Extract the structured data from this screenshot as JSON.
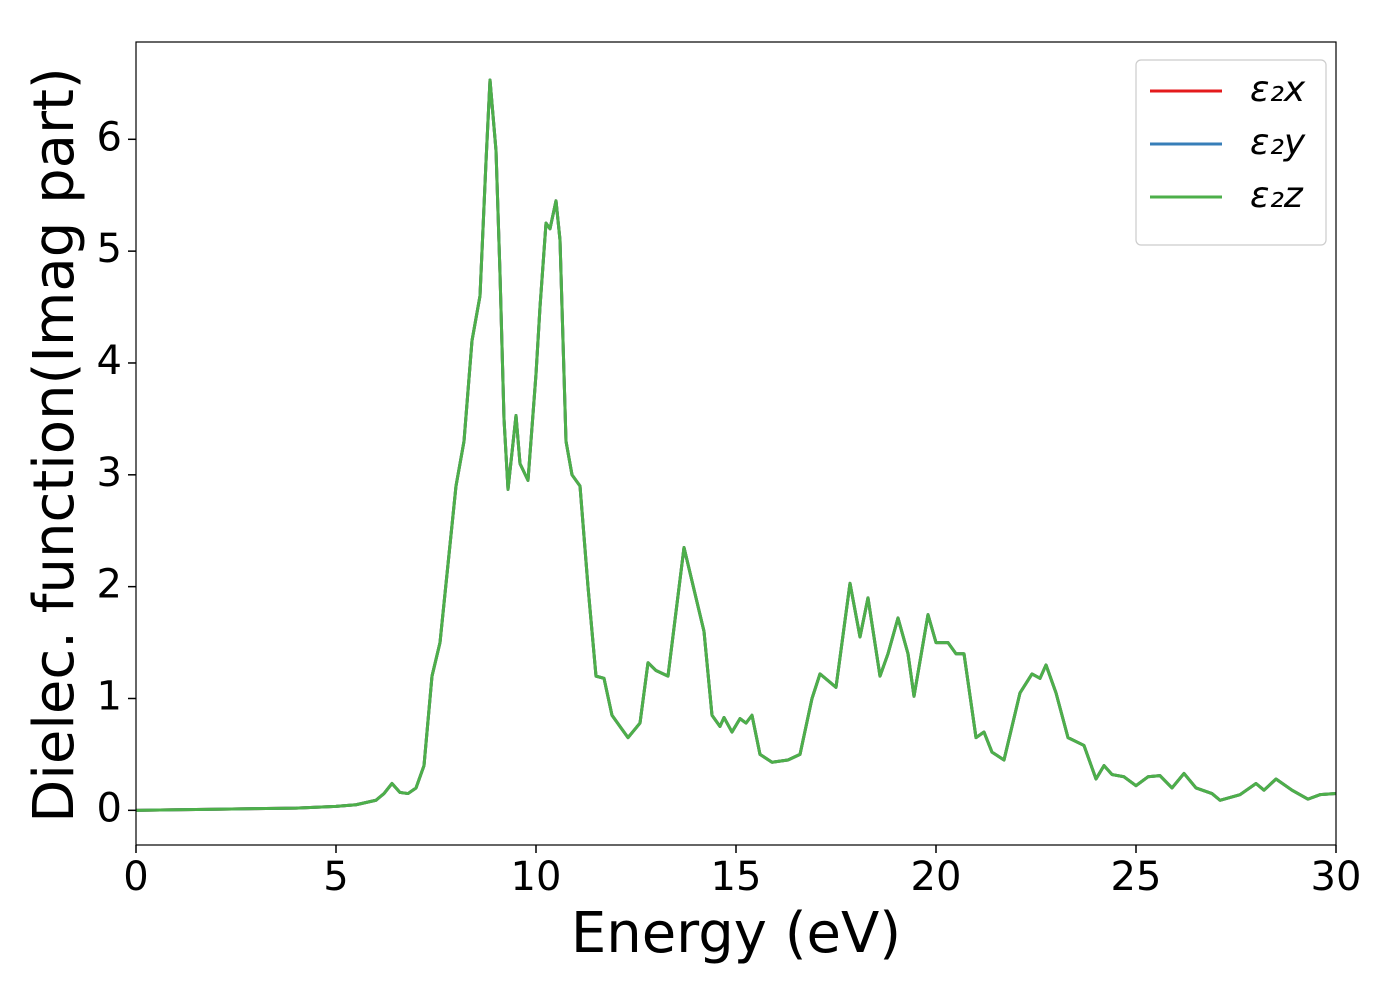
{
  "chart_data": {
    "type": "line",
    "xlabel": "Energy (eV)",
    "ylabel": "Dielec. function(Imag part)",
    "x": [
      0,
      1,
      2,
      3,
      4,
      5,
      5.5,
      6.0,
      6.2,
      6.4,
      6.6,
      6.8,
      7.0,
      7.2,
      7.4,
      7.6,
      7.8,
      8.0,
      8.2,
      8.4,
      8.6,
      8.75,
      8.85,
      9.0,
      9.1,
      9.2,
      9.3,
      9.4,
      9.5,
      9.6,
      9.8,
      10.0,
      10.1,
      10.25,
      10.35,
      10.5,
      10.6,
      10.75,
      10.9,
      11.1,
      11.3,
      11.5,
      11.7,
      11.9,
      12.1,
      12.3,
      12.6,
      12.8,
      13.0,
      13.3,
      13.7,
      14.0,
      14.2,
      14.4,
      14.6,
      14.7,
      14.9,
      15.1,
      15.25,
      15.4,
      15.6,
      15.9,
      16.3,
      16.6,
      16.9,
      17.1,
      17.5,
      17.85,
      18.1,
      18.3,
      18.6,
      18.8,
      19.05,
      19.3,
      19.45,
      19.8,
      20.0,
      20.3,
      20.5,
      20.7,
      21.0,
      21.2,
      21.4,
      21.7,
      22.1,
      22.4,
      22.6,
      22.75,
      23.0,
      23.3,
      23.7,
      24.0,
      24.2,
      24.4,
      24.7,
      25.0,
      25.3,
      25.6,
      25.9,
      26.2,
      26.5,
      26.9,
      27.1,
      27.6,
      28.0,
      28.2,
      28.5,
      28.9,
      29.3,
      29.6,
      30
    ],
    "series": [
      {
        "name": "ε₂x",
        "color": "#e41a1c",
        "values": [
          0.0,
          0.005,
          0.01,
          0.015,
          0.02,
          0.035,
          0.05,
          0.09,
          0.15,
          0.24,
          0.16,
          0.15,
          0.2,
          0.4,
          1.2,
          1.5,
          2.2,
          2.9,
          3.3,
          4.2,
          4.6,
          5.8,
          6.53,
          5.9,
          4.8,
          3.5,
          2.87,
          3.2,
          3.53,
          3.1,
          2.95,
          3.9,
          4.5,
          5.25,
          5.2,
          5.45,
          5.1,
          3.3,
          3.0,
          2.9,
          2.0,
          1.2,
          1.18,
          0.85,
          0.75,
          0.65,
          0.78,
          1.32,
          1.25,
          1.2,
          2.35,
          1.9,
          1.6,
          0.85,
          0.75,
          0.83,
          0.7,
          0.82,
          0.78,
          0.85,
          0.5,
          0.43,
          0.45,
          0.5,
          1.0,
          1.22,
          1.1,
          2.03,
          1.55,
          1.9,
          1.2,
          1.4,
          1.72,
          1.4,
          1.02,
          1.75,
          1.5,
          1.5,
          1.4,
          1.4,
          0.65,
          0.7,
          0.52,
          0.45,
          1.05,
          1.22,
          1.18,
          1.3,
          1.05,
          0.65,
          0.58,
          0.28,
          0.4,
          0.32,
          0.3,
          0.22,
          0.3,
          0.31,
          0.2,
          0.33,
          0.2,
          0.15,
          0.09,
          0.14,
          0.24,
          0.18,
          0.28,
          0.18,
          0.1,
          0.14,
          0.15
        ]
      },
      {
        "name": "ε₂y",
        "color": "#377eb8",
        "values": [
          0.0,
          0.005,
          0.01,
          0.015,
          0.02,
          0.035,
          0.05,
          0.09,
          0.15,
          0.24,
          0.16,
          0.15,
          0.2,
          0.4,
          1.2,
          1.5,
          2.2,
          2.9,
          3.3,
          4.2,
          4.6,
          5.8,
          6.53,
          5.9,
          4.8,
          3.5,
          2.87,
          3.2,
          3.53,
          3.1,
          2.95,
          3.9,
          4.5,
          5.25,
          5.2,
          5.45,
          5.1,
          3.3,
          3.0,
          2.9,
          2.0,
          1.2,
          1.18,
          0.85,
          0.75,
          0.65,
          0.78,
          1.32,
          1.25,
          1.2,
          2.35,
          1.9,
          1.6,
          0.85,
          0.75,
          0.83,
          0.7,
          0.82,
          0.78,
          0.85,
          0.5,
          0.43,
          0.45,
          0.5,
          1.0,
          1.22,
          1.1,
          2.03,
          1.55,
          1.9,
          1.2,
          1.4,
          1.72,
          1.4,
          1.02,
          1.75,
          1.5,
          1.5,
          1.4,
          1.4,
          0.65,
          0.7,
          0.52,
          0.45,
          1.05,
          1.22,
          1.18,
          1.3,
          1.05,
          0.65,
          0.58,
          0.28,
          0.4,
          0.32,
          0.3,
          0.22,
          0.3,
          0.31,
          0.2,
          0.33,
          0.2,
          0.15,
          0.09,
          0.14,
          0.24,
          0.18,
          0.28,
          0.18,
          0.1,
          0.14,
          0.15
        ]
      },
      {
        "name": "ε₂z",
        "color": "#4daf4a",
        "values": [
          0.0,
          0.005,
          0.01,
          0.015,
          0.02,
          0.035,
          0.05,
          0.09,
          0.15,
          0.24,
          0.16,
          0.15,
          0.2,
          0.4,
          1.2,
          1.5,
          2.2,
          2.9,
          3.3,
          4.2,
          4.6,
          5.8,
          6.53,
          5.9,
          4.8,
          3.5,
          2.87,
          3.2,
          3.53,
          3.1,
          2.95,
          3.9,
          4.5,
          5.25,
          5.2,
          5.45,
          5.1,
          3.3,
          3.0,
          2.9,
          2.0,
          1.2,
          1.18,
          0.85,
          0.75,
          0.65,
          0.78,
          1.32,
          1.25,
          1.2,
          2.35,
          1.9,
          1.6,
          0.85,
          0.75,
          0.83,
          0.7,
          0.82,
          0.78,
          0.85,
          0.5,
          0.43,
          0.45,
          0.5,
          1.0,
          1.22,
          1.1,
          2.03,
          1.55,
          1.9,
          1.2,
          1.4,
          1.72,
          1.4,
          1.02,
          1.75,
          1.5,
          1.5,
          1.4,
          1.4,
          0.65,
          0.7,
          0.52,
          0.45,
          1.05,
          1.22,
          1.18,
          1.3,
          1.05,
          0.65,
          0.58,
          0.28,
          0.4,
          0.32,
          0.3,
          0.22,
          0.3,
          0.31,
          0.2,
          0.33,
          0.2,
          0.15,
          0.09,
          0.14,
          0.24,
          0.18,
          0.28,
          0.18,
          0.1,
          0.14,
          0.15
        ]
      }
    ],
    "xlim": [
      0,
      30
    ],
    "xticks": [
      0,
      5,
      10,
      15,
      20,
      25,
      30
    ],
    "ylim": [
      -0.31,
      6.87
    ],
    "yticks": [
      0,
      1,
      2,
      3,
      4,
      5,
      6
    ],
    "grid": false,
    "legend": "upper right"
  }
}
